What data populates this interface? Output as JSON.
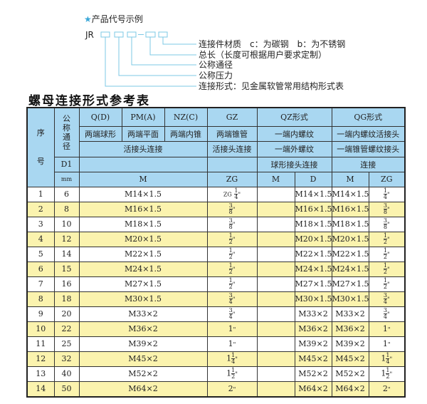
{
  "example": {
    "star_icon": "star-icon",
    "heading": "产品代号示例",
    "prefix": "JR",
    "accent": "#3aa7d8",
    "labels": [
      "连接件材质　c：为碳钢　b：为不锈钢",
      "总长（长度可根据用户要求定制）",
      "公称通径",
      "公称压力",
      "连接形式：见金属软管常用结构形式表"
    ]
  },
  "title": "螺母连接形式参考表",
  "table": {
    "header": {
      "seq": "序号",
      "dn": "公称通径",
      "qd": "Q(D)",
      "pm": "PM(A)",
      "nz": "NZ(C)",
      "gz": "GZ",
      "qz": "QZ形式",
      "qg": "QG形式",
      "qd2": "两端球形",
      "pm2": "两端平面",
      "nz2": "两端内锥",
      "gz2": "两端锥管",
      "qz2": "一端内螺纹",
      "qg2": "一端内螺纹活接头",
      "huo": "活接头连接",
      "gz3": "活接头连接",
      "qz3": "一端外螺纹",
      "qg3": "一端锥管螺纹接头",
      "d1": "D1",
      "qz4": "球形接头连接",
      "qg4": "连接",
      "mm": "mm",
      "m": "M",
      "zg": "ZG",
      "qzm": "M",
      "qzd": "D",
      "qgm": "M",
      "qgzg": "ZG"
    },
    "header_color": "#a9d7f1",
    "alt_row_color": "#fbf3ae",
    "rows": [
      {
        "no": "1",
        "d1": "6",
        "m": "M14×1.5",
        "zg": {
          "pre": "ZG",
          "whole": "",
          "num": "1",
          "den": "4"
        },
        "qzd": "M14×1.5",
        "qgm": "M14×1.5",
        "qgzg": {
          "pre": "",
          "whole": "",
          "num": "1",
          "den": "4"
        }
      },
      {
        "no": "2",
        "d1": "8",
        "m": "M16×1.5",
        "zg": {
          "pre": "",
          "whole": "",
          "num": "3",
          "den": "8"
        },
        "qzd": "M16×1.5",
        "qgm": "M16×1.5",
        "qgzg": {
          "pre": "",
          "whole": "",
          "num": "3",
          "den": "8"
        }
      },
      {
        "no": "3",
        "d1": "10",
        "m": "M18×1.5",
        "zg": {
          "pre": "",
          "whole": "",
          "num": "3",
          "den": "8"
        },
        "qzd": "M18×1.5",
        "qgm": "M18×1.5",
        "qgzg": {
          "pre": "",
          "whole": "",
          "num": "3",
          "den": "8"
        }
      },
      {
        "no": "4",
        "d1": "12",
        "m": "M20×1.5",
        "zg": {
          "pre": "",
          "whole": "",
          "num": "1",
          "den": "2"
        },
        "qzd": "M20×1.5",
        "qgm": "M20×1.5",
        "qgzg": {
          "pre": "",
          "whole": "",
          "num": "1",
          "den": "2"
        }
      },
      {
        "no": "5",
        "d1": "14",
        "m": "M22×1.5",
        "zg": {
          "pre": "",
          "whole": "",
          "num": "1",
          "den": "2"
        },
        "qzd": "M22×1.5",
        "qgm": "M22×1.5",
        "qgzg": {
          "pre": "",
          "whole": "",
          "num": "1",
          "den": "2"
        }
      },
      {
        "no": "6",
        "d1": "15",
        "m": "M24×1.5",
        "zg": {
          "pre": "",
          "whole": "",
          "num": "1",
          "den": "2"
        },
        "qzd": "M24×1.5",
        "qgm": "M24×1.5",
        "qgzg": {
          "pre": "",
          "whole": "",
          "num": "1",
          "den": "2"
        }
      },
      {
        "no": "7",
        "d1": "16",
        "m": "M27×1.5",
        "zg": {
          "pre": "",
          "whole": "",
          "num": "1",
          "den": "2"
        },
        "qzd": "M27×1.5",
        "qgm": "M27×1.5",
        "qgzg": {
          "pre": "",
          "whole": "",
          "num": "1",
          "den": "2"
        }
      },
      {
        "no": "8",
        "d1": "18",
        "m": "M30×1.5",
        "zg": {
          "pre": "",
          "whole": "",
          "num": "3",
          "den": "4"
        },
        "qzd": "M30×1.5",
        "qgm": "M30×1.5",
        "qgzg": {
          "pre": "",
          "whole": "",
          "num": "3",
          "den": "4"
        }
      },
      {
        "no": "9",
        "d1": "20",
        "m": "M33×2",
        "zg": {
          "pre": "",
          "whole": "",
          "num": "3",
          "den": "4"
        },
        "qzd": "M33×2",
        "qgm": "M33×2",
        "qgzg": {
          "pre": "",
          "whole": "",
          "num": "3",
          "den": "4"
        }
      },
      {
        "no": "10",
        "d1": "22",
        "m": "M36×2",
        "zg": {
          "pre": "",
          "whole": "1",
          "num": "",
          "den": ""
        },
        "qzd": "M36×2",
        "qgm": "M36×2",
        "qgzg": {
          "pre": "",
          "whole": "1",
          "num": "",
          "den": ""
        }
      },
      {
        "no": "11",
        "d1": "25",
        "m": "M39×2",
        "zg": {
          "pre": "",
          "whole": "1",
          "num": "",
          "den": ""
        },
        "qzd": "M39×2",
        "qgm": "M39×2",
        "qgzg": {
          "pre": "",
          "whole": "1",
          "num": "",
          "den": ""
        }
      },
      {
        "no": "12",
        "d1": "32",
        "m": "M45×2",
        "zg": {
          "pre": "",
          "whole": "1",
          "num": "1",
          "den": "4"
        },
        "qzd": "M45×2",
        "qgm": "M45×2",
        "qgzg": {
          "pre": "",
          "whole": "1",
          "num": "1",
          "den": "4"
        }
      },
      {
        "no": "13",
        "d1": "40",
        "m": "M52×2",
        "zg": {
          "pre": "",
          "whole": "1",
          "num": "1",
          "den": "2"
        },
        "qzd": "M52×2",
        "qgm": "M52×2",
        "qgzg": {
          "pre": "",
          "whole": "1",
          "num": "1",
          "den": "2"
        }
      },
      {
        "no": "14",
        "d1": "50",
        "m": "M64×2",
        "zg": {
          "pre": "",
          "whole": "2",
          "num": "",
          "den": ""
        },
        "qzd": "M64×2",
        "qgm": "M64×2",
        "qgzg": {
          "pre": "",
          "whole": "2",
          "num": "",
          "den": ""
        }
      }
    ]
  }
}
